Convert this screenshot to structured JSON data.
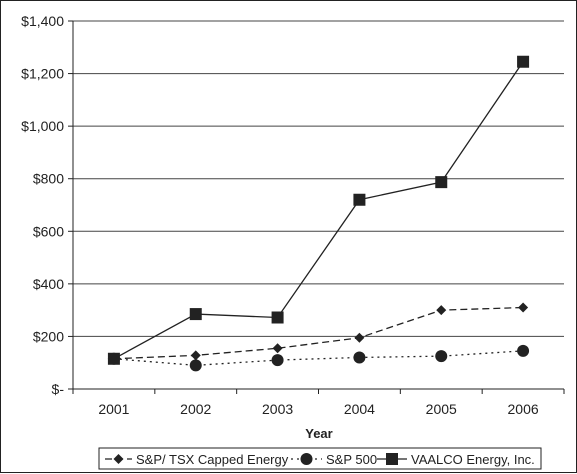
{
  "chart_data": {
    "type": "line",
    "title": "",
    "xlabel": "Year",
    "ylabel": "",
    "categories": [
      "2001",
      "2002",
      "2003",
      "2004",
      "2005",
      "2006"
    ],
    "ylim": [
      0,
      1400
    ],
    "ytick_values": [
      0,
      200,
      400,
      600,
      800,
      1000,
      1200,
      1400
    ],
    "ytick_labels": [
      "$-",
      "$200",
      "$400",
      "$600",
      "$800",
      "$1,000",
      "$1,200",
      "$1,400"
    ],
    "grid": "horizontal",
    "legend_position": "bottom",
    "series": [
      {
        "name": "S&P/ TSX Capped Energy",
        "values": [
          115,
          128,
          155,
          195,
          300,
          310
        ],
        "marker": "diamond",
        "line_style": "dashed",
        "color": "#222222"
      },
      {
        "name": "S&P 500",
        "values": [
          115,
          90,
          110,
          120,
          125,
          145
        ],
        "marker": "circle",
        "line_style": "dotted",
        "color": "#222222"
      },
      {
        "name": "VAALCO Energy, Inc.",
        "values": [
          115,
          285,
          272,
          720,
          787,
          1245
        ],
        "marker": "square",
        "line_style": "solid",
        "color": "#222222"
      }
    ]
  }
}
